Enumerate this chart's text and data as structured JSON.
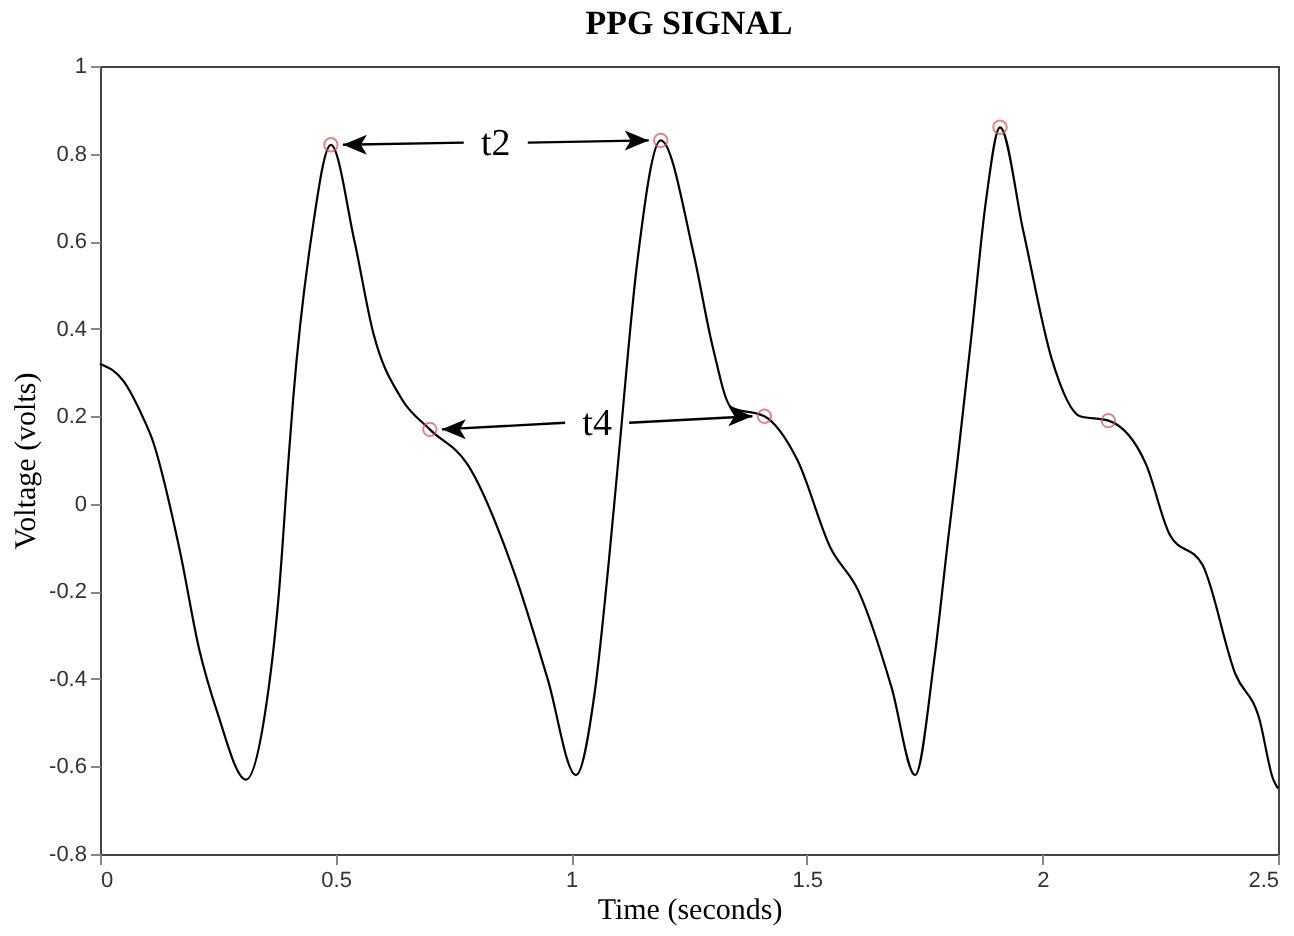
{
  "chart_data": {
    "type": "line",
    "title": "PPG SIGNAL",
    "xlabel": "Time (seconds)",
    "ylabel": "Voltage (volts)",
    "xlim": [
      0,
      2.5
    ],
    "xticks": [
      0,
      0.5,
      1,
      1.5,
      2,
      2.5
    ],
    "ylim": [
      -0.8,
      1
    ],
    "yticks": [
      -0.8,
      -0.6,
      -0.4,
      -0.2,
      0,
      0.2,
      0.4,
      0.6,
      0.8,
      1
    ],
    "grid": false,
    "series": [
      {
        "color": "#000000",
        "marker": "none",
        "x": [
          0,
          0.05,
          0.09,
          0.11,
          0.17,
          0.21,
          0.25,
          0.31,
          0.35,
          0.38,
          0.4,
          0.41,
          0.45,
          0.49,
          0.54,
          0.58,
          0.64,
          0.7,
          0.78,
          0.88,
          0.95,
          1.01,
          1.05,
          1.08,
          1.1,
          1.14,
          1.19,
          1.26,
          1.3,
          1.34,
          1.41,
          1.48,
          1.55,
          1.61,
          1.68,
          1.73,
          1.77,
          1.8,
          1.82,
          1.85,
          1.88,
          1.91,
          1.96,
          2.02,
          2.08,
          2.14,
          2.22,
          2.27,
          2.34,
          2.41,
          2.46,
          2.49,
          2.5
        ],
        "values": [
          0.32,
          0.28,
          0.2,
          0.15,
          -0.11,
          -0.33,
          -0.48,
          -0.63,
          -0.48,
          -0.2,
          0.1,
          0.24,
          0.62,
          0.82,
          0.6,
          0.39,
          0.24,
          0.17,
          0.09,
          -0.16,
          -0.4,
          -0.62,
          -0.43,
          -0.13,
          0.1,
          0.55,
          0.83,
          0.57,
          0.36,
          0.22,
          0.2,
          0.1,
          -0.1,
          -0.2,
          -0.42,
          -0.62,
          -0.36,
          -0.08,
          0.1,
          0.39,
          0.69,
          0.86,
          0.62,
          0.33,
          0.2,
          0.19,
          0.09,
          -0.07,
          -0.14,
          -0.39,
          -0.49,
          -0.63,
          -0.65
        ]
      },
      {
        "type": "scatter",
        "color": "#e05050",
        "marker": "circle",
        "x": [
          0.49,
          1.19,
          0.7,
          1.41,
          1.91,
          2.14
        ],
        "values": [
          0.82,
          0.83,
          0.17,
          0.2,
          0.86,
          0.19
        ]
      }
    ],
    "annotations": [
      "t2",
      "t4"
    ]
  }
}
